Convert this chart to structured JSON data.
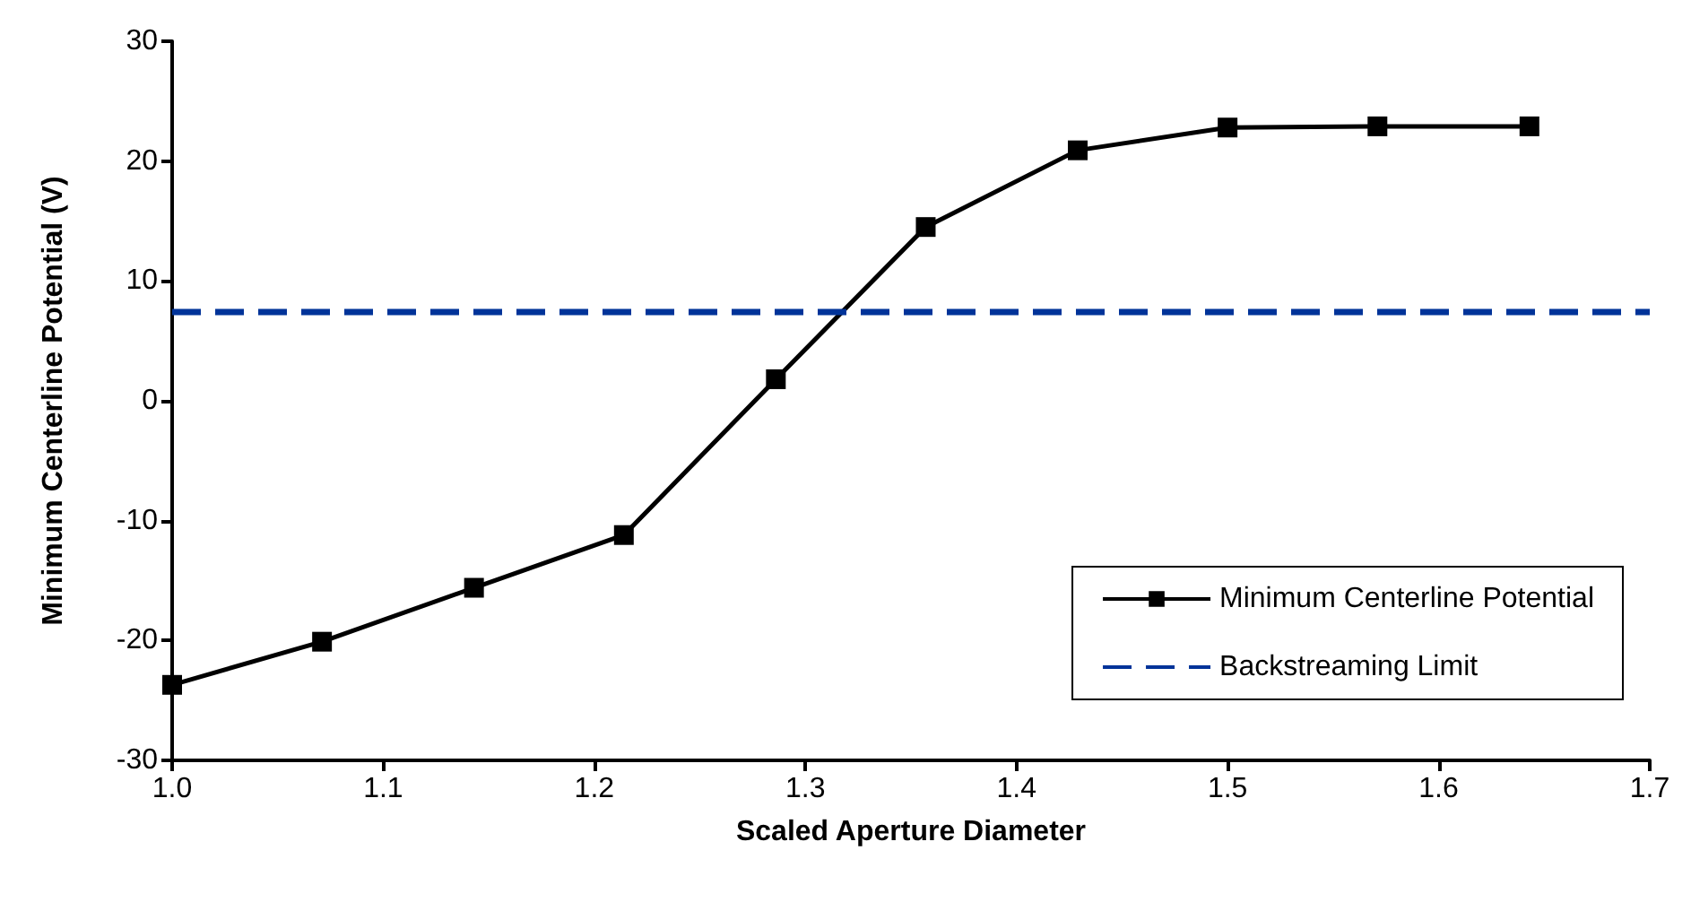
{
  "chart_data": {
    "type": "line",
    "xlabel": "Scaled Aperture Diameter",
    "ylabel": "Minimum Centerline Potential (V)",
    "x": [
      1.0,
      1.071,
      1.143,
      1.214,
      1.286,
      1.357,
      1.429,
      1.5,
      1.571,
      1.643
    ],
    "series": [
      {
        "name": "Minimum Centerline Potential",
        "color": "#000000",
        "values": [
          -23.7,
          -20.1,
          -15.6,
          -11.2,
          1.8,
          14.5,
          20.9,
          22.8,
          22.9,
          22.9
        ]
      }
    ],
    "ref_lines": [
      {
        "axis": "y",
        "value": 7.4,
        "label": "Backstreaming Limit",
        "color": "#003399",
        "line_style": "dashed"
      }
    ],
    "xlim": [
      1.0,
      1.7
    ],
    "xticks": [
      {
        "value": 1.0,
        "label": "1.0"
      },
      1.1,
      1.2,
      1.3,
      1.4,
      1.5,
      1.6,
      1.7
    ],
    "ylim": [
      -30,
      30
    ],
    "yticks": [
      -30,
      -20,
      -10,
      0,
      10,
      20,
      30
    ],
    "grid": false,
    "legend": "bottom right",
    "marker": "square",
    "line_style": "solid"
  }
}
